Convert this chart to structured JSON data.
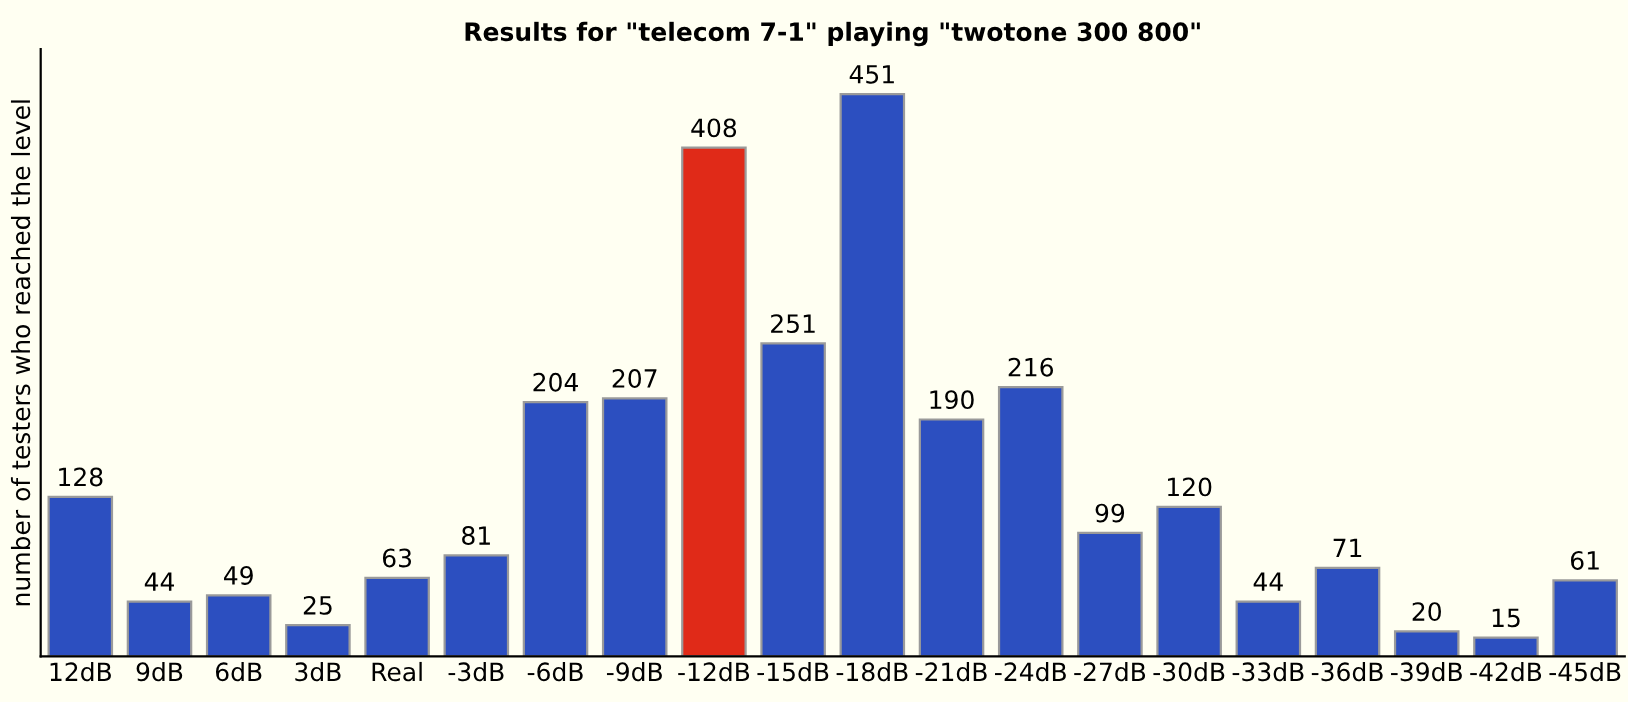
{
  "chart_data": {
    "type": "bar",
    "title": "Results for \"telecom 7-1\" playing \"twotone 300 800\"",
    "ylabel": "number of testers who reached the level",
    "categories": [
      "12dB",
      "9dB",
      "6dB",
      "3dB",
      "Real",
      "-3dB",
      "-6dB",
      "-9dB",
      "-12dB",
      "-15dB",
      "-18dB",
      "-21dB",
      "-24dB",
      "-27dB",
      "-30dB",
      "-33dB",
      "-36dB",
      "-39dB",
      "-42dB",
      "-45dB"
    ],
    "values": [
      128,
      44,
      49,
      25,
      63,
      81,
      204,
      207,
      408,
      251,
      451,
      190,
      216,
      99,
      120,
      44,
      71,
      20,
      15,
      61
    ],
    "colors": [
      "#2c4fc0",
      "#2c4fc0",
      "#2c4fc0",
      "#2c4fc0",
      "#2c4fc0",
      "#2c4fc0",
      "#2c4fc0",
      "#2c4fc0",
      "#e02a18",
      "#2c4fc0",
      "#2c4fc0",
      "#2c4fc0",
      "#2c4fc0",
      "#2c4fc0",
      "#2c4fc0",
      "#2c4fc0",
      "#2c4fc0",
      "#2c4fc0",
      "#2c4fc0",
      "#2c4fc0"
    ],
    "data_labels": true,
    "grid": false,
    "legend": false
  }
}
